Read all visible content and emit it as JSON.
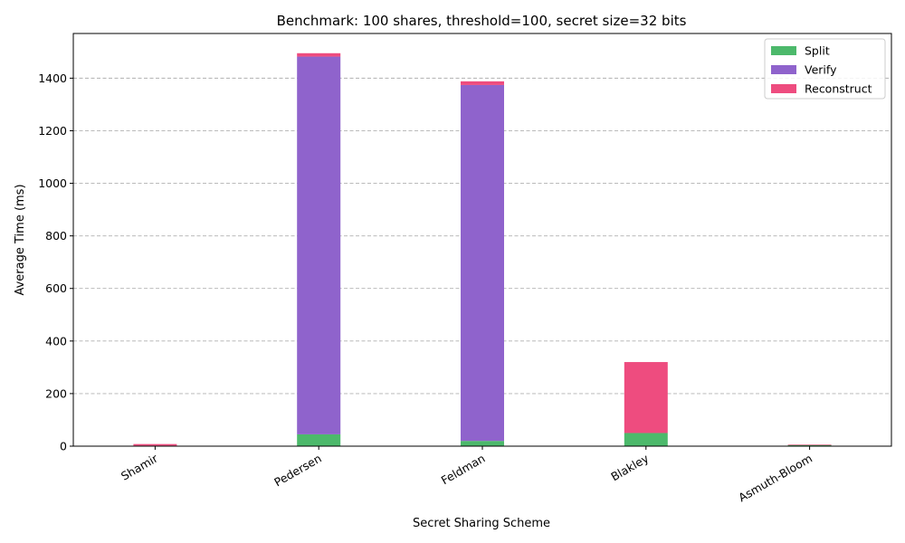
{
  "chart_data": {
    "type": "bar",
    "stacked": true,
    "title": "Benchmark: 100 shares, threshold=100, secret size=32 bits",
    "xlabel": "Secret Sharing Scheme",
    "ylabel": "Average Time (ms)",
    "categories": [
      "Shamir",
      "Pedersen",
      "Feldman",
      "Blakley",
      "Asmuth-Bloom"
    ],
    "series": [
      {
        "name": "Split",
        "color": "#4cb96b",
        "values": [
          2,
          45,
          20,
          50,
          5
        ]
      },
      {
        "name": "Verify",
        "color": "#8f63cc",
        "values": [
          0,
          1437,
          1354,
          0,
          0
        ]
      },
      {
        "name": "Reconstruct",
        "color": "#ee4c7f",
        "values": [
          6,
          13,
          14,
          270,
          1
        ]
      }
    ],
    "ylim": [
      0,
      1570
    ],
    "yticks": [
      0,
      200,
      400,
      600,
      800,
      1000,
      1200,
      1400
    ],
    "grid": true,
    "legend_position": "top-right"
  }
}
